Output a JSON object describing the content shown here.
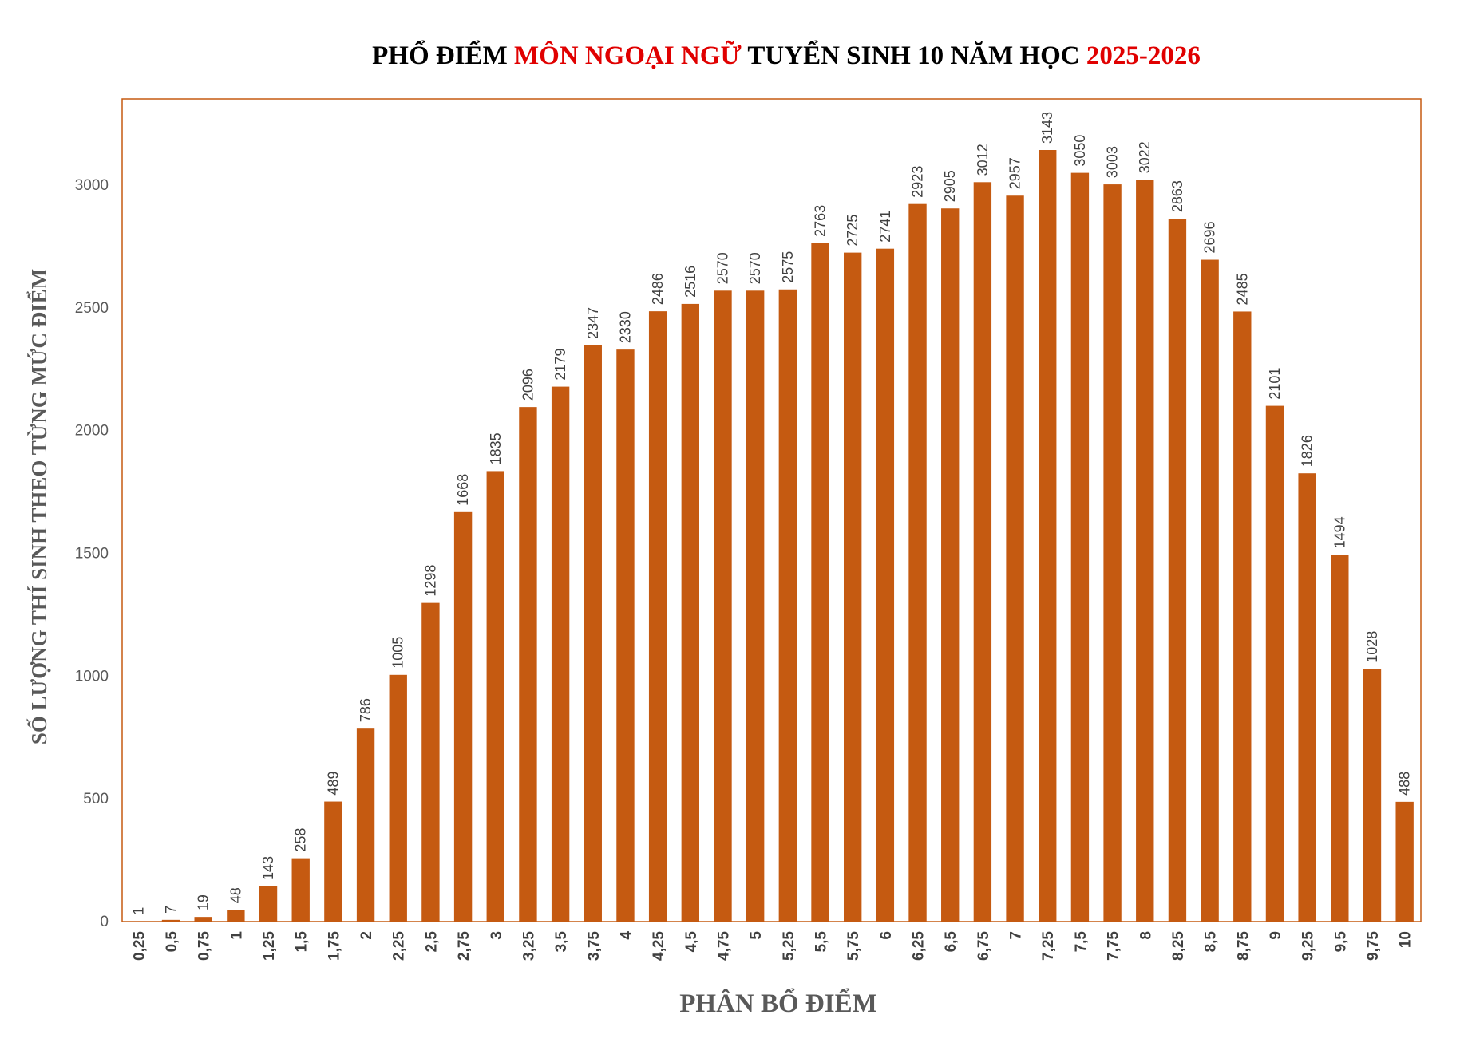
{
  "title": {
    "parts": [
      {
        "text": "PHỔ ĐIỂM ",
        "color": "#000000"
      },
      {
        "text": "MÔN NGOẠI NGỮ",
        "color": "#e00000"
      },
      {
        "text": " TUYỂN SINH 10 NĂM HỌC ",
        "color": "#000000"
      },
      {
        "text": "2025-2026",
        "color": "#e00000"
      }
    ]
  },
  "colors": {
    "bar": "#c55a11",
    "plot_border": "#c55a11",
    "text_dark": "#404040",
    "text_axis": "#595959"
  },
  "chart_data": {
    "type": "bar",
    "xlabel": "PHÂN BỔ ĐIỂM",
    "ylabel": "SỐ LƯỢNG THÍ SINH THEO TỪNG MỨC ĐIỂM",
    "ylim": [
      0,
      3300
    ],
    "yticks": [
      0,
      500,
      1000,
      1500,
      2000,
      2500,
      3000
    ],
    "grid": false,
    "legend": "none",
    "categories": [
      "0,25",
      "0,5",
      "0,75",
      "1",
      "1,25",
      "1,5",
      "1,75",
      "2",
      "2,25",
      "2,5",
      "2,75",
      "3",
      "3,25",
      "3,5",
      "3,75",
      "4",
      "4,25",
      "4,5",
      "4,75",
      "5",
      "5,25",
      "5,5",
      "5,75",
      "6",
      "6,25",
      "6,5",
      "6,75",
      "7",
      "7,25",
      "7,5",
      "7,75",
      "8",
      "8,25",
      "8,5",
      "8,75",
      "9",
      "9,25",
      "9,5",
      "9,75",
      "10"
    ],
    "values": [
      1,
      7,
      19,
      48,
      143,
      258,
      489,
      786,
      1005,
      1298,
      1668,
      1835,
      2096,
      2179,
      2347,
      2330,
      2486,
      2516,
      2570,
      2570,
      2575,
      2763,
      2725,
      2741,
      2923,
      2905,
      3012,
      2957,
      3143,
      3050,
      3003,
      3022,
      2863,
      2696,
      2485,
      2101,
      1826,
      1494,
      1028,
      488
    ]
  }
}
